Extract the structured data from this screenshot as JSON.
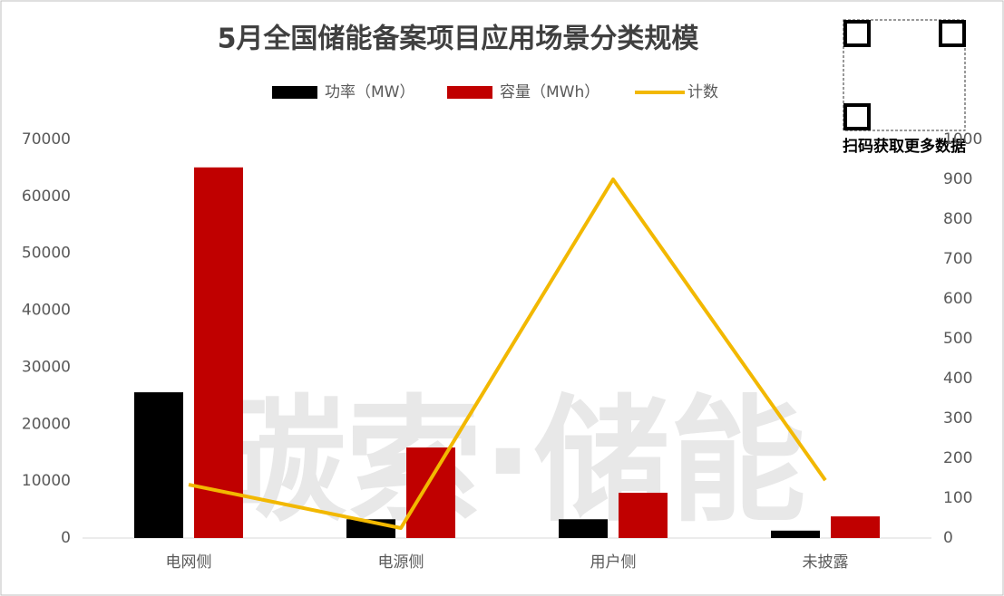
{
  "chart_data": {
    "type": "bar",
    "title": "5月全国储能备案项目应用场景分类规模",
    "watermark": "碳索·储能",
    "qr_caption": "扫码获取更多数据",
    "categories": [
      "电网侧",
      "电源侧",
      "用户侧",
      "未披露"
    ],
    "series": [
      {
        "name": "功率（MW）",
        "color": "#000000",
        "values": [
          25600,
          3300,
          3300,
          1300
        ]
      },
      {
        "name": "容量（MWh）",
        "color": "#c00000",
        "values": [
          65100,
          15900,
          7950,
          3800
        ]
      },
      {
        "name": "计数",
        "color": "#f2b800",
        "type": "line",
        "axis": "y2",
        "values": [
          134,
          25,
          900,
          145
        ]
      }
    ],
    "ylim": [
      0,
      70000
    ],
    "yticks": [
      0,
      10000,
      20000,
      30000,
      40000,
      50000,
      60000,
      70000
    ],
    "y2lim": [
      0,
      1000
    ],
    "y2ticks": [
      0,
      100,
      200,
      300,
      400,
      500,
      600,
      700,
      800,
      900,
      1000
    ],
    "legend": "top"
  }
}
